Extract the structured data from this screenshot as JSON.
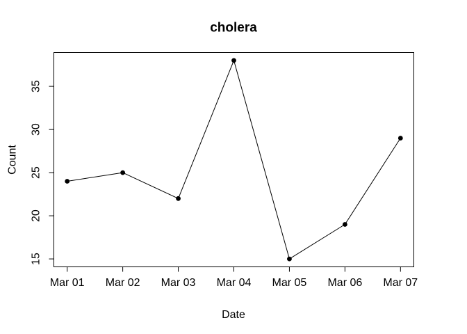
{
  "figure": {
    "background_color": "#ffffff",
    "foreground_color": "#000000"
  },
  "chart_data": {
    "type": "line",
    "title": "cholera",
    "xlabel": "Date",
    "ylabel": "Count",
    "categories": [
      "Mar 01",
      "Mar 02",
      "Mar 03",
      "Mar 04",
      "Mar 05",
      "Mar 06",
      "Mar 07"
    ],
    "values": [
      24,
      25,
      22,
      38,
      15,
      19,
      29
    ],
    "yticks": [
      15,
      20,
      25,
      30,
      35
    ],
    "xlim": [
      1,
      7
    ],
    "ylim": [
      15,
      38
    ],
    "axis_padding_fraction": 0.04,
    "line_color": "#000000",
    "marker": "filled-circle",
    "marker_color": "#000000",
    "grid": false,
    "legend": "none"
  }
}
